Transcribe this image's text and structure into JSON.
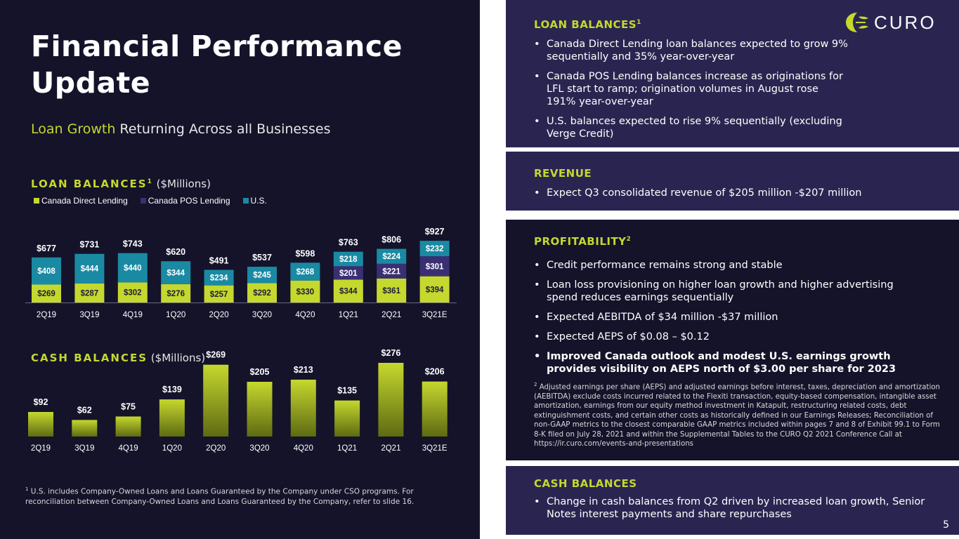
{
  "title": "Financial Performance Update",
  "subtitle": {
    "accent": "Loan Growth",
    "rest": " Returning Across all Businesses"
  },
  "loan_section": {
    "caps": "LOAN BALANCES",
    "sup": "1",
    "unit": " ($Millions)"
  },
  "cash_section": {
    "caps": "CASH BALANCES",
    "unit": " ($Millions)"
  },
  "colors": {
    "canada_direct": "#c5d82e",
    "canada_pos": "#3b2f73",
    "us": "#1a8aa3",
    "accent": "#c5d82e",
    "background": "#14132a"
  },
  "chart_data": [
    {
      "type": "bar",
      "stacked": true,
      "title": "LOAN BALANCES ($Millions)",
      "categories": [
        "2Q19",
        "3Q19",
        "4Q19",
        "1Q20",
        "2Q20",
        "3Q20",
        "4Q20",
        "1Q21",
        "2Q21",
        "3Q21E"
      ],
      "series": [
        {
          "name": "Canada Direct Lending",
          "values": [
            269,
            287,
            302,
            276,
            257,
            292,
            330,
            344,
            361,
            394
          ]
        },
        {
          "name": "Canada POS Lending",
          "values": [
            0,
            0,
            0,
            0,
            0,
            0,
            0,
            201,
            221,
            301
          ]
        },
        {
          "name": "U.S.",
          "values": [
            408,
            444,
            440,
            344,
            234,
            245,
            268,
            218,
            224,
            232
          ]
        }
      ],
      "segment_labels": [
        [
          "$269",
          "$287",
          "$302",
          "$276",
          "$257",
          "$292",
          "$330",
          "$344",
          "$361",
          "$394"
        ],
        [
          "",
          "",
          "",
          "",
          "",
          "",
          "",
          "$201",
          "$221",
          "$301"
        ],
        [
          "$408",
          "$444",
          "$440",
          "$344",
          "$234",
          "$245",
          "$268",
          "$218",
          "$224",
          "$232"
        ]
      ],
      "totals": [
        677,
        731,
        743,
        620,
        491,
        537,
        598,
        763,
        806,
        927
      ],
      "total_labels": [
        "$677",
        "$731",
        "$743",
        "$620",
        "$491",
        "$537",
        "$598",
        "$763",
        "$806",
        "$927"
      ],
      "ylim": [
        0,
        950
      ],
      "legend_position": "top-left"
    },
    {
      "type": "bar",
      "title": "CASH BALANCES ($Millions)",
      "categories": [
        "2Q19",
        "3Q19",
        "4Q19",
        "1Q20",
        "2Q20",
        "3Q20",
        "4Q20",
        "1Q21",
        "2Q21",
        "3Q21E"
      ],
      "values": [
        92,
        62,
        75,
        139,
        269,
        205,
        213,
        135,
        276,
        206
      ],
      "value_labels": [
        "$92",
        "$62",
        "$75",
        "$139",
        "$269",
        "$205",
        "$213",
        "$135",
        "$276",
        "$206"
      ],
      "ylim": [
        0,
        276
      ]
    }
  ],
  "footnote1": {
    "sup": "1",
    "text": " U.S. includes Company-Owned Loans and Loans Guaranteed by the Company under CSO programs. For reconciliation between Company-Owned Loans and Loans Guaranteed by the Company, refer to slide 16."
  },
  "logo": {
    "text": "CURO"
  },
  "loan_box": {
    "heading": "LOAN BALANCES",
    "sup": "1",
    "bullets": [
      "Canada Direct Lending loan balances expected to grow 9% sequentially and 35% year-over-year",
      "Canada POS Lending balances increase as originations for LFL start to ramp; origination volumes in August rose 191% year-over-year",
      "U.S. balances expected to rise 9% sequentially (excluding Verge Credit)"
    ]
  },
  "revenue_box": {
    "heading": "REVENUE",
    "bullets": [
      "Expect Q3 consolidated revenue of $205 million -$207 million"
    ]
  },
  "profit_box": {
    "heading": "PROFITABILITY",
    "sup": "2",
    "bullets": [
      "Credit performance remains strong and stable",
      "Loan loss provisioning on higher loan growth and higher advertising spend reduces earnings sequentially",
      "Expected AEBITDA of $34 million -$37 million",
      "Expected AEPS of $0.08 – $0.12",
      "Improved Canada outlook and modest U.S. earnings growth provides visibility on AEPS north of $3.00 per share for 2023"
    ],
    "footnote_sup": "2",
    "footnote": " Adjusted earnings per share (AEPS) and adjusted earnings before interest, taxes, depreciation and amortization (AEBITDA) exclude costs incurred related to the Flexiti transaction, equity-based compensation, intangible asset amortization, earnings from our equity method investment in Katapult, restructuring related costs, debt extinguishment costs, and certain other costs as historically defined in our Earnings Releases; Reconciliation of non-GAAP metrics to the closest comparable GAAP metrics included within pages 7 and 8 of Exhibit 99.1 to Form 8-K filed on July 28, 2021 and within the Supplemental Tables to the CURO Q2 2021 Conference Call at  https://ir.curo.com/events-and-presentations"
  },
  "cash_box": {
    "heading": "CASH BALANCES",
    "bullets": [
      "Change in cash balances from Q2 driven by increased loan growth, Senior Notes interest payments and share repurchases"
    ]
  },
  "page_number": "5"
}
